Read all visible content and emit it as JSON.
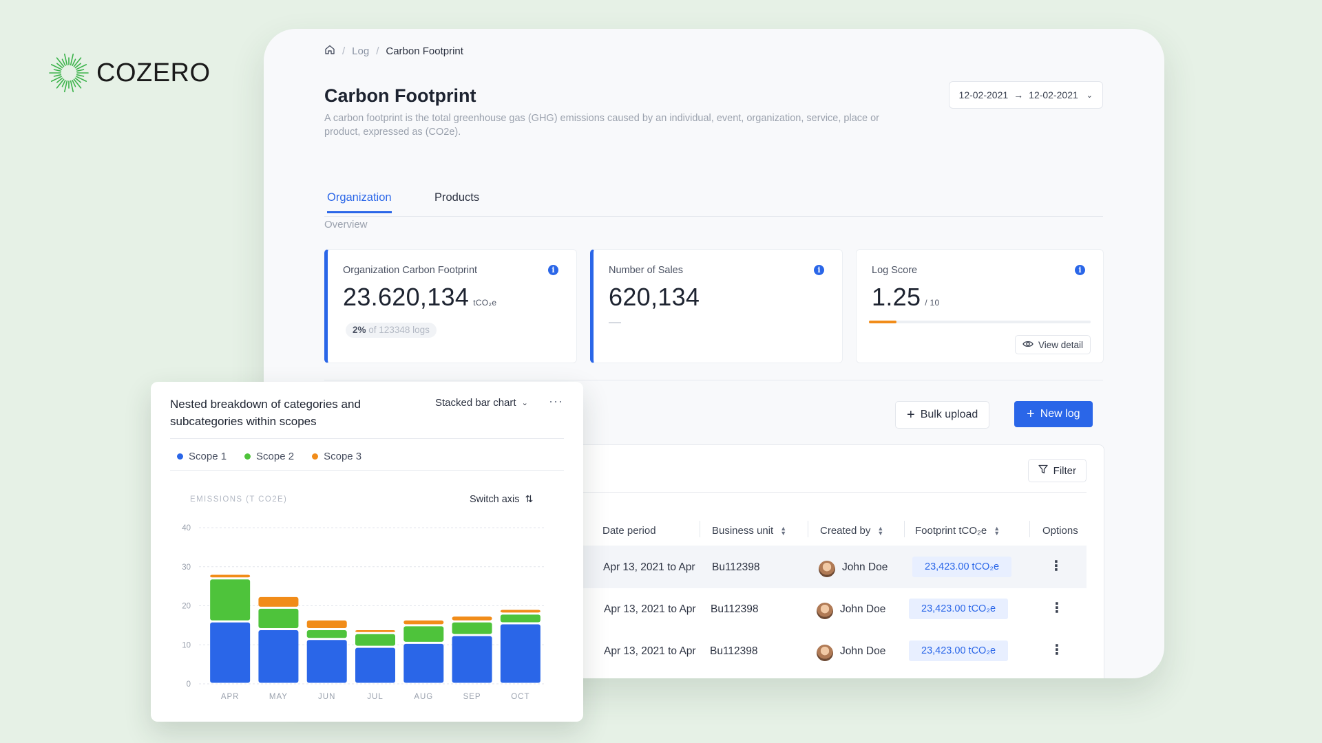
{
  "brand": {
    "name": "COZERO",
    "accent": "#3bb34a"
  },
  "breadcrumb": {
    "items": [
      "Log",
      "Carbon Footprint"
    ]
  },
  "page": {
    "title": "Carbon Footprint",
    "description": "A carbon footprint is the total greenhouse gas (GHG) emissions caused by an individual, event, organization, service, place or product, expressed as (CO2e).",
    "date_range": {
      "from": "12-02-2021",
      "to": "12-02-2021"
    }
  },
  "tabs": [
    {
      "label": "Organization",
      "active": true
    },
    {
      "label": "Products",
      "active": false
    }
  ],
  "overview": {
    "label": "Overview",
    "cards": [
      {
        "label": "Organization Carbon Footprint",
        "value": "23.620,134",
        "unit": "tCO₂e",
        "pill_strong": "2%",
        "pill_rest": "of 123348 logs"
      },
      {
        "label": "Number of Sales",
        "value": "620,134"
      },
      {
        "label": "Log Score",
        "value": "1.25",
        "unit": "/ 10",
        "score_fraction": 0.125,
        "action": "View detail"
      }
    ]
  },
  "actions": {
    "bulk_upload": "Bulk upload",
    "new_log": "New log"
  },
  "table": {
    "filter_label": "Filter",
    "columns": [
      "Date period",
      "Business unit",
      "Created by",
      "Footprint tCO₂e",
      "Options"
    ],
    "rows": [
      {
        "date": "Apr 13, 2021 to Apr",
        "unit": "Bu112398",
        "creator": "John Doe",
        "footprint": "23,423.00 tCO₂e"
      },
      {
        "date": "Apr 13, 2021 to Apr",
        "unit": "Bu112398",
        "creator": "John Doe",
        "footprint": "23,423.00 tCO₂e"
      },
      {
        "date": "Apr 13, 2021 to Apr",
        "unit": "Bu112398",
        "creator": "John Doe",
        "footprint": "23,423.00 tCO₂e"
      }
    ]
  },
  "chart_panel": {
    "title": "Nested breakdown of categories and subcategories within scopes",
    "chart_type_label": "Stacked bar chart",
    "switch_axis_label": "Switch axis"
  },
  "chart_data": {
    "type": "bar",
    "stacked": true,
    "ylabel": "EMISSIONS (T CO2E)",
    "ylim": [
      0,
      40
    ],
    "yticks": [
      0,
      10,
      20,
      30,
      40
    ],
    "grid": true,
    "legend_position": "top-left",
    "categories": [
      "APR",
      "MAY",
      "JUN",
      "JUL",
      "AUG",
      "SEP",
      "OCT"
    ],
    "series": [
      {
        "name": "Scope 1",
        "color": "#2a66e8",
        "values": [
          16,
          14,
          11.5,
          9.5,
          10.5,
          12.5,
          15.5
        ]
      },
      {
        "name": "Scope 2",
        "color": "#4ec33b",
        "values": [
          11,
          5.5,
          2.5,
          3.5,
          4.5,
          3.5,
          2.5
        ]
      },
      {
        "name": "Scope 3",
        "color": "#f18c19",
        "values": [
          1.2,
          3,
          2.5,
          1,
          1.5,
          1.5,
          1.2
        ]
      }
    ]
  }
}
